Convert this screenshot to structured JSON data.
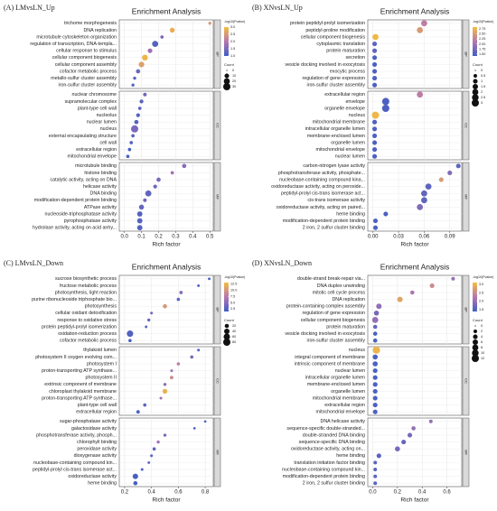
{
  "chart_data": [
    {
      "type": "scatter",
      "panel_label": "(A) LMvsLN_Up",
      "title": "Enrichment Analysis",
      "xlabel": "Rich factor",
      "xlim": [
        -0.03,
        0.52
      ],
      "xticks": [
        {
          "value": 0,
          "label": "0.0"
        },
        0.1,
        0.2,
        0.3,
        0.4,
        0.5
      ],
      "colorbar_title": "-log10(Pvalue)",
      "clim": [
        1,
        3
      ],
      "colorbar_ticks": [
        {
          "value": 1,
          "label": "1.0"
        },
        1.5,
        {
          "value": 2,
          "label": "2.0"
        },
        2.5,
        {
          "value": 3,
          "label": "3.0"
        }
      ],
      "colors": [
        "#3d5ec4",
        "#b776b0",
        "#f3bd3f"
      ],
      "size_title": "Count",
      "size_ticks": [
        0,
        10,
        20,
        30
      ],
      "facets": [
        {
          "name": "BP",
          "categories": [
            "trichome morphogenesis",
            "DNA replication",
            "microtubule cytoskeleton organization",
            "regulation of transcription, DNA-templa...",
            "cellular response to stimulus",
            "cellular component biogenesis",
            "cellular component assembly",
            "cofactor metabolic process",
            "metallo-sulfur cluster assembly",
            "iron-sulfur cluster assembly"
          ],
          "values": [
            0.5,
            0.28,
            0.22,
            0.18,
            0.15,
            0.12,
            0.1,
            0.08,
            0.06,
            0.05
          ],
          "color_values": [
            2.5,
            2.8,
            1.5,
            1.2,
            1.8,
            2.9,
            2.6,
            1.4,
            1.2,
            1.2
          ],
          "counts": [
            3,
            12,
            4,
            20,
            10,
            18,
            16,
            8,
            3,
            3
          ]
        },
        {
          "name": "CC",
          "categories": [
            "nuclear chromosome",
            "supramolecular complex",
            "plant-type cell wall",
            "nucleolus",
            "nuclear lumen",
            "nucleus",
            "external encapsulating structure",
            "cell wall",
            "extracellular region",
            "mitochondrial envelope"
          ],
          "values": [
            0.12,
            0.1,
            0.09,
            0.08,
            0.07,
            0.06,
            0.05,
            0.04,
            0.03,
            0.02
          ],
          "color_values": [
            1.4,
            1.2,
            1.3,
            1.2,
            1.2,
            1.5,
            1.2,
            1.2,
            1.1,
            1.1
          ],
          "counts": [
            5,
            6,
            4,
            6,
            8,
            30,
            4,
            4,
            4,
            4
          ]
        },
        {
          "name": "MF",
          "categories": [
            "microtubule binding",
            "histone binding",
            "catalytic activity, acting on DNA",
            "helicase activity",
            "DNA binding",
            "modification-dependent protein binding",
            "ATPase activity",
            "nucleoside-triphosphatase activity",
            "pyrophosphatase activity",
            "hydrolase activity, acting on acid anhy..."
          ],
          "values": [
            0.35,
            0.28,
            0.2,
            0.18,
            0.14,
            0.12,
            0.1,
            0.09,
            0.09,
            0.09
          ],
          "color_values": [
            1.6,
            1.8,
            1.5,
            1.4,
            1.3,
            1.4,
            1.3,
            1.2,
            1.2,
            1.2
          ],
          "counts": [
            8,
            4,
            8,
            6,
            20,
            5,
            12,
            14,
            14,
            14
          ]
        }
      ]
    },
    {
      "type": "scatter",
      "panel_label": "(B) XNvsLN_Up",
      "title": "Enrichment Analysis",
      "xlabel": "Rich factor",
      "xlim": [
        -0.006,
        0.104
      ],
      "xticks": [
        {
          "value": 0,
          "label": "0.00"
        },
        0.03,
        0.06,
        0.09
      ],
      "colorbar_title": "-log10(Pvalue)",
      "clim": [
        1.4,
        2.85
      ],
      "colorbar_ticks": [
        {
          "value": 1.5,
          "label": "1.50"
        },
        1.75,
        {
          "value": 2,
          "label": "2.00"
        },
        2.25,
        {
          "value": 2.5,
          "label": "2.50"
        },
        2.75
      ],
      "colors": [
        "#3d5ec4",
        "#b776b0",
        "#f3bd3f"
      ],
      "size_title": "Count",
      "size_ticks": [
        0,
        0.5,
        1,
        1.5,
        2,
        2.5,
        3
      ],
      "facets": [
        {
          "name": "BP",
          "categories": [
            "protein peptidyl-prolyl isomerization",
            "peptidyl-proline modification",
            "cellular component biogenesis",
            "cytoplasmic translation",
            "protein maturation",
            "secretion",
            "vesicle docking involved in exocytosis",
            "exocytic process",
            "regulation of gene expression",
            "iron-sulfur cluster assembly"
          ],
          "values": [
            0.06,
            0.055,
            0.003,
            0.002,
            0.002,
            0.002,
            0.002,
            0.002,
            0.002,
            0.002
          ],
          "color_values": [
            2.2,
            2.5,
            2.8,
            1.6,
            1.6,
            1.5,
            1.5,
            1.5,
            1.5,
            1.5
          ],
          "counts": [
            2,
            2,
            2,
            1,
            1,
            1,
            1,
            1,
            1,
            1
          ]
        },
        {
          "name": "CC",
          "categories": [
            "extracellular region",
            "envelope",
            "organelle envelope",
            "nucleus",
            "mitochondrial membrane",
            "intracellular organelle lumen",
            "membrane-enclosed lumen",
            "organelle lumen",
            "mitochondrial envelope",
            "nuclear lumen"
          ],
          "values": [
            0.055,
            0.015,
            0.015,
            0.003,
            0.002,
            0.002,
            0.002,
            0.002,
            0.002,
            0.002
          ],
          "color_values": [
            2.2,
            1.5,
            1.5,
            2.8,
            1.5,
            1.5,
            1.5,
            1.5,
            1.5,
            1.5
          ],
          "counts": [
            2,
            3,
            3,
            3,
            1,
            1,
            1,
            1,
            1,
            1
          ]
        },
        {
          "name": "MF",
          "categories": [
            "carbon-nitrogen lyase activity",
            "phosphotransferase activity, phosphate...",
            "nucleobase-containing compound kina...",
            "oxidoreductase activity, acting on peroxide...",
            "peptidyl-prolyl cis-trans isomerase act...",
            "cis-trans isomerase activity",
            "oxidoreductase activity, acting on paired...",
            "heme binding",
            "modification-dependent protein binding",
            "2 iron, 2 sulfur cluster binding"
          ],
          "values": [
            0.1,
            0.09,
            0.08,
            0.065,
            0.06,
            0.06,
            0.055,
            0.015,
            0.003,
            0.003
          ],
          "color_values": [
            1.6,
            1.8,
            2.5,
            1.6,
            1.6,
            1.6,
            1.8,
            1.5,
            1.5,
            1.5
          ],
          "counts": [
            1,
            1,
            1,
            2,
            2,
            2,
            2,
            1,
            1,
            1
          ]
        }
      ]
    },
    {
      "type": "scatter",
      "panel_label": "(C) LMvsLN_Down",
      "title": "Enrichment Analysis",
      "xlabel": "Rich factor",
      "xlim": [
        0.16,
        0.86
      ],
      "xticks": [
        0.2,
        0.4,
        0.6,
        0.8
      ],
      "colorbar_title": "-log10(Pvalue)",
      "clim": [
        1.5,
        13
      ],
      "colorbar_ticks": [
        2.5,
        {
          "value": 5,
          "label": "5.0"
        },
        7.5,
        {
          "value": 10,
          "label": "10.0"
        },
        12.5
      ],
      "colors": [
        "#3d5ec4",
        "#b776b0",
        "#f3bd3f"
      ],
      "size_title": "Count",
      "size_ticks": [
        20,
        40,
        60,
        80
      ],
      "facets": [
        {
          "name": "BP",
          "categories": [
            "sucrose biosynthetic process",
            "fructose metabolic process",
            "photosynthesis, light reaction",
            "purine ribonucleoside triphosphate bio...",
            "photosynthesis",
            "cellular oxidant detoxification",
            "response to oxidative stress",
            "protein peptidyl-prolyl isomerization",
            "oxidation-reduction process",
            "cofactor metabolic process"
          ],
          "values": [
            0.83,
            0.75,
            0.62,
            0.6,
            0.5,
            0.4,
            0.38,
            0.36,
            0.24,
            0.24
          ],
          "color_values": [
            2,
            2,
            5,
            3,
            10,
            4,
            3,
            3,
            2.5,
            2
          ],
          "counts": [
            5,
            5,
            12,
            10,
            20,
            6,
            8,
            5,
            60,
            10
          ]
        },
        {
          "name": "CC",
          "categories": [
            "thylakoid lumen",
            "photosystem II oxygen evolving com...",
            "photosystem I",
            "proton-transporting ATP synthase...",
            "photosystem II",
            "extrinsic component of membrane",
            "chloroplast thylakoid membrane",
            "proton-transporting ATP synthase...",
            "plant-type cell wall",
            "extracellular region"
          ],
          "values": [
            0.75,
            0.7,
            0.6,
            0.55,
            0.55,
            0.5,
            0.5,
            0.47,
            0.35,
            0.3
          ],
          "color_values": [
            3,
            4,
            8,
            6,
            9,
            5,
            12,
            6,
            3,
            2
          ],
          "counts": [
            6,
            10,
            10,
            6,
            12,
            8,
            30,
            6,
            10,
            12
          ]
        },
        {
          "name": "MF",
          "categories": [
            "sugar-phosphatase activity",
            "galactosidase activity",
            "phosphotransferase activity, phosph...",
            "chlorophyll binding",
            "peroxidase activity",
            "dioxygenase activity",
            "nucleobase-containing compound kin...",
            "peptidyl-prolyl cis-trans isomerase act...",
            "oxidoreductase activity",
            "heme binding"
          ],
          "values": [
            0.8,
            0.72,
            0.5,
            0.45,
            0.42,
            0.4,
            0.38,
            0.33,
            0.28,
            0.28
          ],
          "color_values": [
            2,
            2,
            4,
            6,
            3,
            3,
            3,
            2.5,
            2,
            2
          ],
          "counts": [
            4,
            4,
            8,
            8,
            10,
            6,
            5,
            6,
            40,
            20
          ]
        }
      ]
    },
    {
      "type": "scatter",
      "panel_label": "(D) XNvsLN_Down",
      "title": "Enrichment Analysis",
      "xlabel": "Rich factor",
      "xlim": [
        -0.04,
        0.72
      ],
      "xticks": [
        {
          "value": 0,
          "label": "0.0"
        },
        0.2,
        0.4,
        0.6
      ],
      "colorbar_title": "-log10(Pvalue)",
      "clim": [
        1.4,
        3.1
      ],
      "colorbar_ticks": [
        1.5,
        {
          "value": 2,
          "label": "2.0"
        },
        2.5,
        {
          "value": 3,
          "label": "3.0"
        }
      ],
      "colors": [
        "#3d5ec4",
        "#b776b0",
        "#f3bd3f"
      ],
      "size_title": "Count",
      "size_ticks": [
        0,
        2,
        4,
        6,
        8,
        10,
        12
      ],
      "facets": [
        {
          "name": "BP",
          "categories": [
            "double-strand break-repair via...",
            "DNA duplex unwinding",
            "mitotic cell cycle process",
            "DNA replication",
            "protein-containing complex assembly",
            "regulation of gene expression",
            "cellular component biogenesis",
            "protein maturation",
            "vesicle docking involved in exocytosis",
            "iron-sulfur cluster assembly"
          ],
          "values": [
            0.65,
            0.48,
            0.32,
            0.22,
            0.05,
            0.03,
            0.02,
            0.02,
            0.02,
            0.02
          ],
          "color_values": [
            2,
            2.5,
            2.2,
            2.8,
            2,
            1.8,
            2,
            1.7,
            1.5,
            1.5
          ],
          "counts": [
            2,
            4,
            3,
            6,
            6,
            5,
            8,
            3,
            3,
            3
          ]
        },
        {
          "name": "CC",
          "categories": [
            "nucleus",
            "integral component of membrane",
            "intrinsic component of membrane",
            "nuclear lumen",
            "intracellular organelle lumen",
            "membrane-enclosed lumen",
            "organelle lumen",
            "mitochondrial membrane",
            "extracellular region",
            "mitochondrial envelope"
          ],
          "values": [
            0.03,
            0.02,
            0.02,
            0.02,
            0.02,
            0.02,
            0.02,
            0.02,
            0.02,
            0.02
          ],
          "color_values": [
            3,
            1.5,
            1.5,
            1.5,
            1.5,
            1.5,
            1.5,
            1.5,
            1.5,
            1.5
          ],
          "counts": [
            12,
            5,
            5,
            4,
            4,
            4,
            4,
            4,
            4,
            4
          ]
        },
        {
          "name": "MF",
          "categories": [
            "DNA helicase activity",
            "sequence-specific double-stranded...",
            "double-stranded DNA binding",
            "sequence-specific DNA binding",
            "oxidoreductase activity, acting on...",
            "heme binding",
            "translation initiation factor binding",
            "nucleobase-containing compound kin...",
            "modification-dependent protein binding",
            "2 iron, 2 sulfur cluster binding"
          ],
          "values": [
            0.47,
            0.33,
            0.3,
            0.25,
            0.2,
            0.05,
            0.02,
            0.02,
            0.02,
            0.02
          ],
          "color_values": [
            2,
            2,
            1.8,
            1.7,
            1.8,
            1.6,
            1.6,
            1.6,
            1.6,
            1.6
          ],
          "counts": [
            2,
            3,
            4,
            4,
            5,
            4,
            2,
            2,
            2,
            2
          ]
        }
      ]
    }
  ]
}
